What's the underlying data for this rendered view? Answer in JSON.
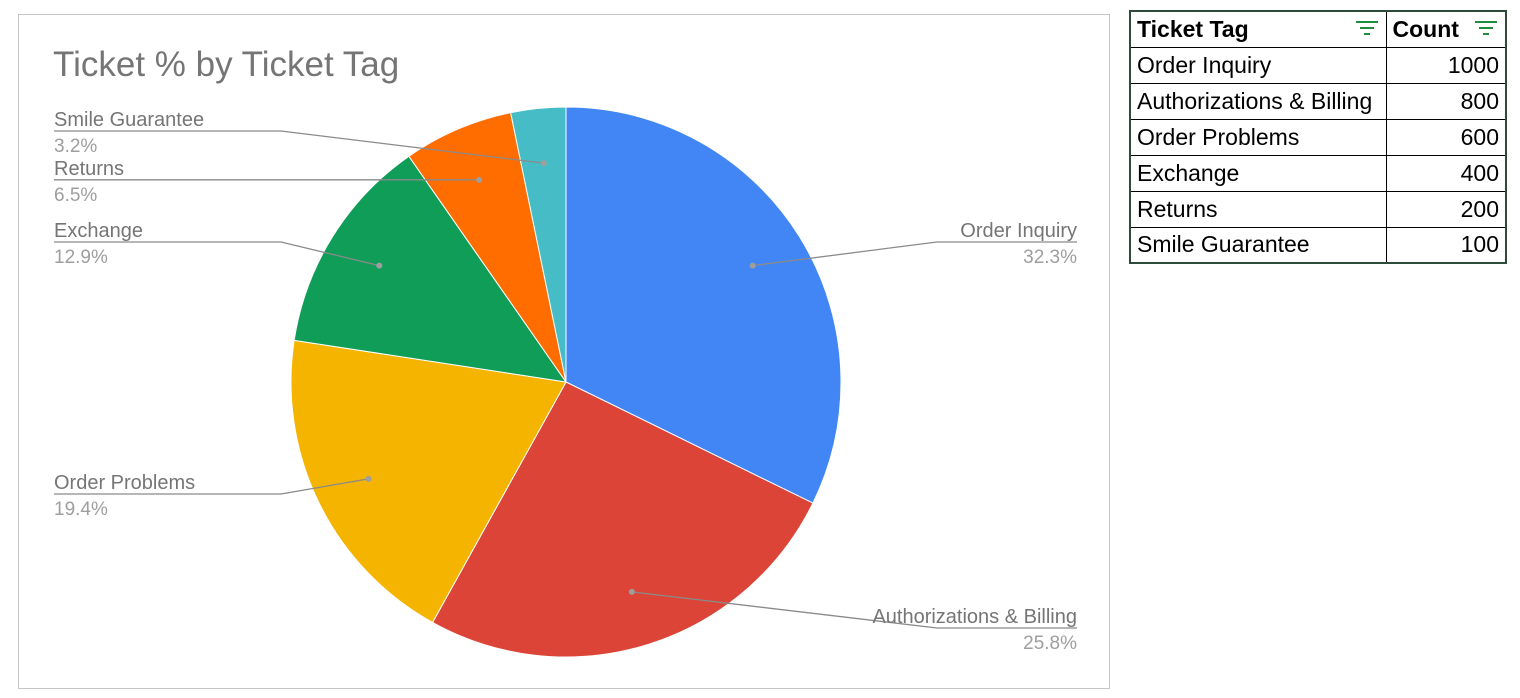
{
  "chart_data": {
    "type": "pie",
    "title": "Ticket % by Ticket Tag",
    "categories": [
      "Order Inquiry",
      "Authorizations & Billing",
      "Order Problems",
      "Exchange",
      "Returns",
      "Smile Guarantee"
    ],
    "values": [
      1000,
      800,
      600,
      400,
      200,
      100
    ],
    "percent_labels": [
      "32.3%",
      "25.8%",
      "19.4%",
      "12.9%",
      "6.5%",
      "3.2%"
    ],
    "colors": [
      "#4285f4",
      "#db4437",
      "#f4b400",
      "#0f9d58",
      "#ff6d01",
      "#46bdc6"
    ],
    "start_angle": "12 o'clock",
    "direction": "clockwise",
    "legend": "labels with leader lines"
  },
  "table": {
    "headers": {
      "tag": "Ticket Tag",
      "count": "Count"
    },
    "filter_icon": "filter-icon",
    "rows": [
      {
        "tag": "Order Inquiry",
        "count": "1000"
      },
      {
        "tag": "Authorizations & Billing",
        "count": "800"
      },
      {
        "tag": "Order Problems",
        "count": "600"
      },
      {
        "tag": "Exchange",
        "count": "400"
      },
      {
        "tag": "Returns",
        "count": "200"
      },
      {
        "tag": "Smile Guarantee",
        "count": "100"
      }
    ]
  }
}
